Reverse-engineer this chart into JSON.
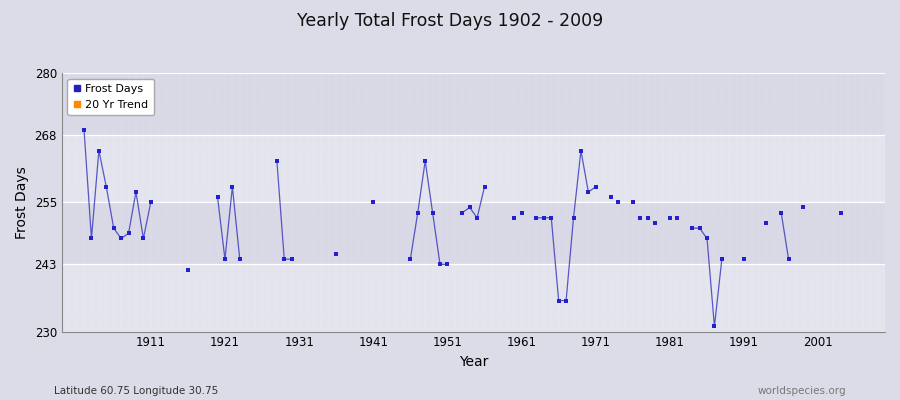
{
  "title": "Yearly Total Frost Days 1902 - 2009",
  "xlabel": "Year",
  "ylabel": "Frost Days",
  "subtitle": "Latitude 60.75 Longitude 30.75",
  "watermark": "worldspecies.org",
  "ylim": [
    230,
    280
  ],
  "yticks": [
    230,
    243,
    255,
    268,
    280
  ],
  "xlim": [
    1899,
    2010
  ],
  "bg_color": "#dcdce8",
  "band_light": "#e8e8f2",
  "band_dark": "#d8d8e6",
  "line_color": "#3333bb",
  "marker_color": "#2222cc",
  "legend_frost_color": "#2222bb",
  "legend_trend_color": "#ff8800",
  "xtick_start": 1911,
  "xtick_step": 10,
  "years_data": {
    "1902": 269,
    "1903": 248,
    "1904": 265,
    "1905": 258,
    "1906": 250,
    "1907": 248,
    "1908": 249,
    "1909": 257,
    "1910": 248,
    "1911": 255,
    "1916": 242,
    "1920": 256,
    "1921": 244,
    "1922": 258,
    "1923": 244,
    "1928": 263,
    "1929": 244,
    "1930": 244,
    "1936": 245,
    "1941": 255,
    "1946": 244,
    "1947": 253,
    "1948": 263,
    "1949": 253,
    "1950": 243,
    "1951": 243,
    "1953": 253,
    "1954": 254,
    "1955": 252,
    "1956": 258,
    "1960": 252,
    "1961": 253,
    "1963": 252,
    "1964": 252,
    "1965": 252,
    "1966": 236,
    "1967": 236,
    "1968": 252,
    "1969": 265,
    "1970": 257,
    "1971": 258,
    "1973": 256,
    "1974": 255,
    "1976": 255,
    "1977": 252,
    "1978": 252,
    "1979": 251,
    "1981": 252,
    "1982": 252,
    "1984": 250,
    "1985": 250,
    "1986": 248,
    "1987": 231,
    "1988": 244,
    "1991": 244,
    "1994": 251,
    "1996": 253,
    "1997": 244,
    "1999": 254,
    "2004": 253
  },
  "segments": [
    [
      1902,
      1903,
      1904,
      1905,
      1906,
      1907,
      1908,
      1909,
      1910,
      1911
    ],
    [
      1920,
      1921,
      1922,
      1923
    ],
    [
      1928,
      1929,
      1930
    ],
    [
      1946,
      1947,
      1948,
      1949,
      1950,
      1951
    ],
    [
      1953,
      1954,
      1955,
      1956
    ],
    [
      1963,
      1964,
      1965,
      1966,
      1967,
      1968,
      1969,
      1970,
      1971
    ],
    [
      1984,
      1985,
      1986,
      1987,
      1988
    ],
    [
      1996,
      1997
    ]
  ]
}
